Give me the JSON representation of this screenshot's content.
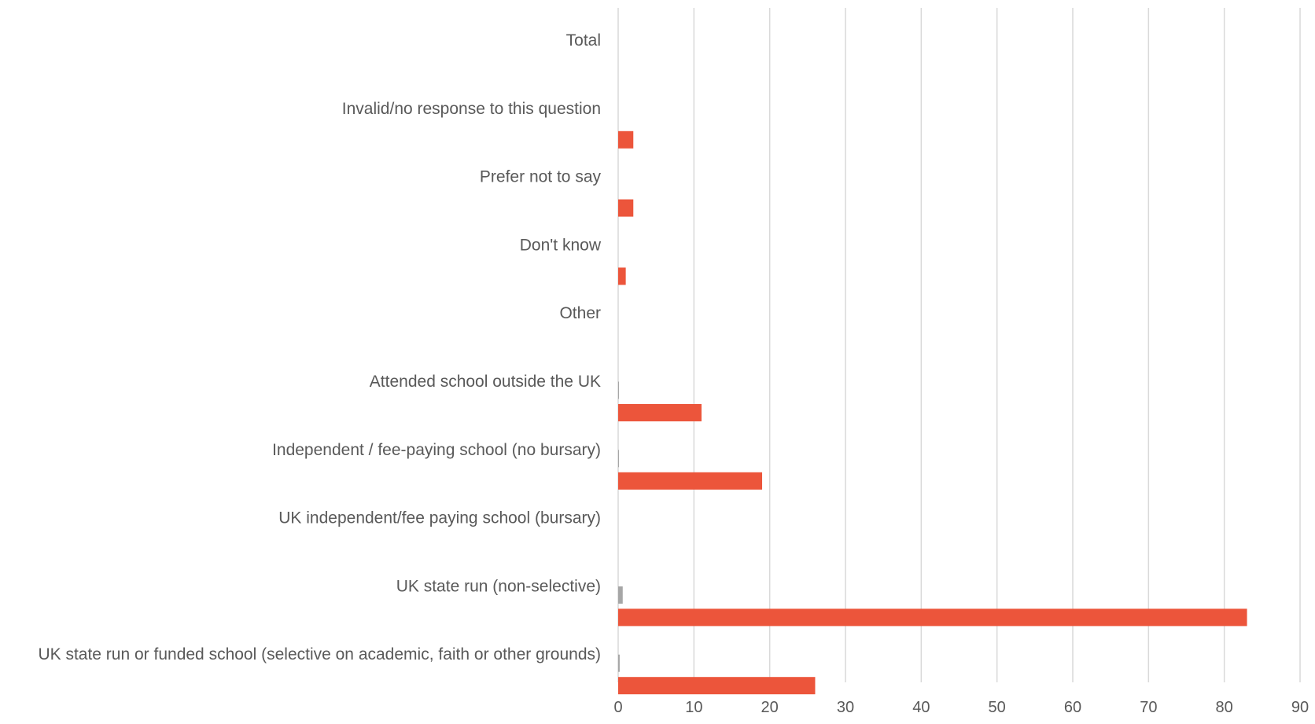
{
  "chart_data": {
    "type": "bar",
    "orientation": "horizontal",
    "categories": [
      "Total",
      "Invalid/no response to this question",
      "Prefer not to say",
      "Don't know",
      "Other",
      "Attended school outside the UK",
      "Independent / fee-paying school (no bursary)",
      "UK independent/fee paying school (bursary)",
      "UK state run (non-selective)",
      "UK state run or funded school (selective on academic, faith or other grounds)"
    ],
    "series": [
      {
        "color": "#a6a6a6",
        "values": [
          0,
          0,
          0,
          0,
          0,
          0.1,
          0.1,
          0,
          0.6,
          0.2
        ]
      },
      {
        "color": "#ec553b",
        "values": [
          0,
          2,
          2,
          1,
          0,
          11,
          19,
          0,
          83,
          26
        ]
      }
    ],
    "xlim": [
      0,
      90
    ],
    "xticks": [
      "0",
      "10",
      "20",
      "30",
      "40",
      "50",
      "60",
      "70",
      "80",
      "90"
    ],
    "grid": true,
    "gridColor": "#d9d9d9",
    "title": "",
    "xlabel": "",
    "ylabel": ""
  }
}
